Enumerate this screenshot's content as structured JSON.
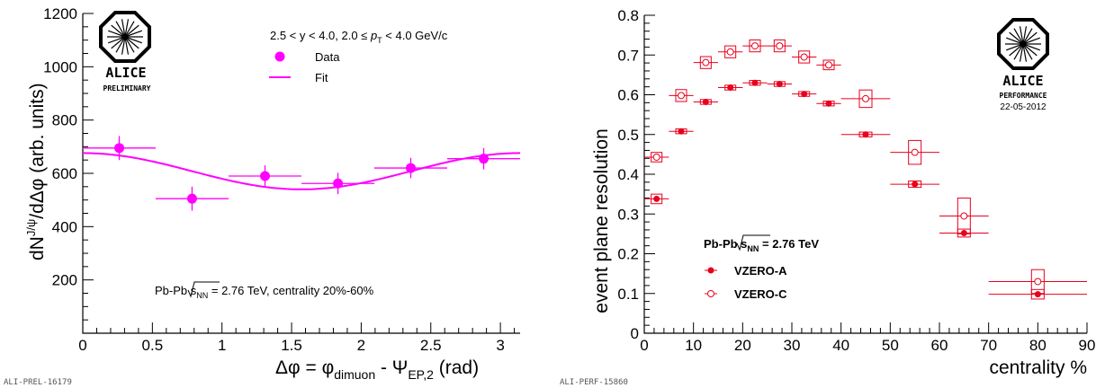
{
  "chart_data": [
    {
      "type": "scatter",
      "xlim": [
        0,
        3.1416
      ],
      "ylim": [
        0,
        1200
      ],
      "xticks": [
        "0",
        "0.5",
        "1",
        "1.5",
        "2",
        "2.5",
        "3"
      ],
      "yticks": [
        "200",
        "400",
        "600",
        "800",
        "1000",
        "1200"
      ],
      "xlabel_parts": [
        "Δφ = φ",
        "dimuon",
        " - Ψ",
        "EP,2",
        " (rad)"
      ],
      "ylabel_parts": [
        "dN",
        "J/ψ",
        "/dΔφ (arb. units)"
      ],
      "kinematics_parts": [
        "2.5 < y < 4.0, 2.0 ≤ ",
        "p",
        "T",
        " < 4.0 GeV/c"
      ],
      "system_parts": [
        "Pb-Pb ",
        "s",
        "NN",
        " = 2.76 TeV, centrality 20%-60%"
      ],
      "legend": [
        "Data",
        "Fit"
      ],
      "logo": {
        "name": "ALICE",
        "tag": "PRELIMINARY"
      },
      "id_label": "ALI-PREL-16179",
      "color": "#ff00ff",
      "series": [
        {
          "name": "Data",
          "x": [
            0.262,
            0.785,
            1.309,
            1.833,
            2.356,
            2.88
          ],
          "xerr": 0.262,
          "y": [
            695,
            505,
            590,
            562,
            620,
            655
          ],
          "yerr": [
            45,
            45,
            40,
            40,
            38,
            40
          ]
        },
        {
          "name": "Fit",
          "function": "A(1 + 2 v2 cos(2Δφ))",
          "A": 608,
          "v2": 0.056
        }
      ]
    },
    {
      "type": "scatter",
      "xlim": [
        0,
        90
      ],
      "ylim": [
        0,
        0.8
      ],
      "xticks": [
        "0",
        "10",
        "20",
        "30",
        "40",
        "50",
        "60",
        "70",
        "80",
        "90"
      ],
      "yticks": [
        "0",
        "0.1",
        "0.2",
        "0.3",
        "0.4",
        "0.5",
        "0.6",
        "0.7",
        "0.8"
      ],
      "xlabel": "centrality %",
      "ylabel": "event plane resolution",
      "system_parts": [
        "Pb-Pb ",
        "s",
        "NN",
        " = 2.76 TeV"
      ],
      "logo": {
        "name": "ALICE",
        "tag": "PERFORMANCE",
        "date": "22-05-2012"
      },
      "id_label": "ALI-PERF-15860",
      "color": "#e8001c",
      "series": [
        {
          "name": "VZERO-A",
          "marker": "filled",
          "x": [
            2.5,
            7.5,
            12.5,
            17.5,
            22.5,
            27.5,
            32.5,
            37.5,
            45,
            55,
            65,
            80
          ],
          "xerr": [
            2.5,
            2.5,
            2.5,
            2.5,
            2.5,
            2.5,
            2.5,
            2.5,
            5,
            5,
            5,
            10
          ],
          "y": [
            0.338,
            0.508,
            0.582,
            0.618,
            0.63,
            0.627,
            0.602,
            0.578,
            0.5,
            0.375,
            0.252,
            0.098
          ],
          "sys": [
            0.012,
            0.006,
            0.006,
            0.006,
            0.006,
            0.006,
            0.006,
            0.006,
            0.006,
            0.008,
            0.01,
            0.012
          ]
        },
        {
          "name": "VZERO-C",
          "marker": "open",
          "x": [
            2.5,
            7.5,
            12.5,
            17.5,
            22.5,
            27.5,
            32.5,
            37.5,
            45,
            55,
            65,
            80
          ],
          "xerr": [
            2.5,
            2.5,
            2.5,
            2.5,
            2.5,
            2.5,
            2.5,
            2.5,
            5,
            5,
            5,
            10
          ],
          "y": [
            0.443,
            0.598,
            0.681,
            0.708,
            0.723,
            0.723,
            0.695,
            0.675,
            0.59,
            0.455,
            0.295,
            0.13
          ],
          "sys": [
            0.012,
            0.015,
            0.015,
            0.015,
            0.015,
            0.015,
            0.015,
            0.012,
            0.022,
            0.03,
            0.045,
            0.03
          ]
        }
      ]
    }
  ]
}
